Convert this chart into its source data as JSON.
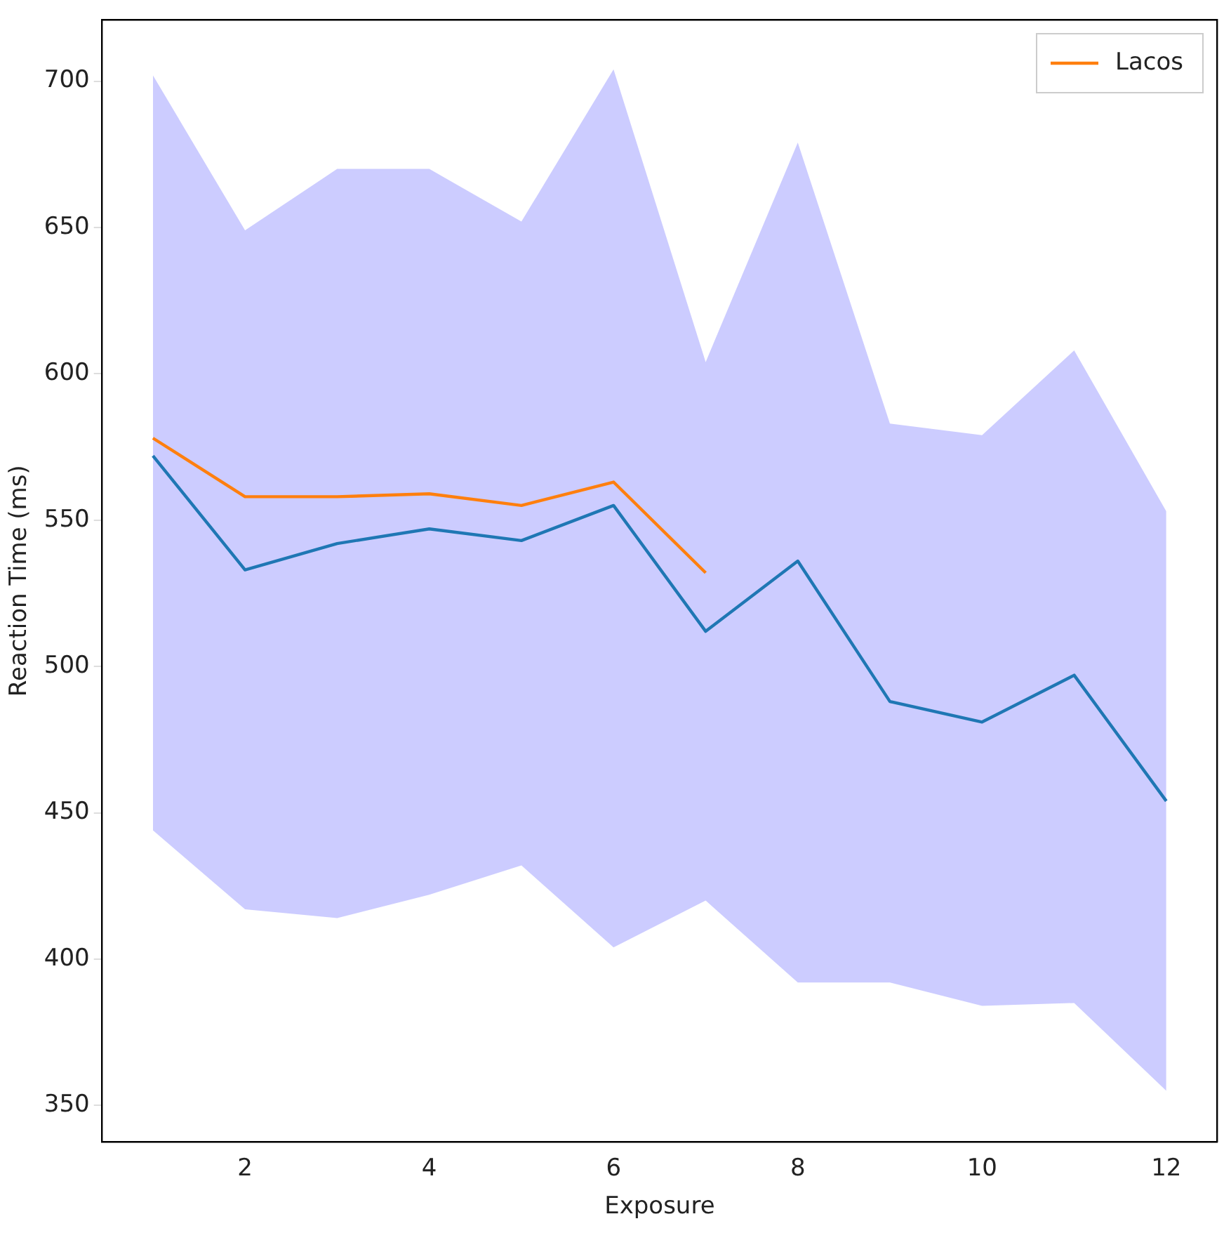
{
  "chart_data": {
    "type": "line",
    "xlabel": "Exposure",
    "ylabel": "Reaction Time (ms)",
    "x": [
      1,
      2,
      3,
      4,
      5,
      6,
      7,
      8,
      9,
      10,
      11,
      12
    ],
    "series": [
      {
        "color": "#1f77b4",
        "values": [
          572,
          533,
          542,
          547,
          543,
          555,
          512,
          536,
          488,
          481,
          497,
          454
        ],
        "lower": [
          444,
          417,
          414,
          422,
          432,
          404,
          420,
          392,
          392,
          384,
          385,
          355
        ],
        "upper": [
          702,
          649,
          670,
          670,
          652,
          704,
          604,
          679,
          583,
          579,
          608,
          553
        ]
      },
      {
        "name": "Lacos",
        "color": "#ff7f0e",
        "x": [
          1,
          2,
          3,
          4,
          5,
          6,
          7
        ],
        "values": [
          578,
          558,
          558,
          559,
          555,
          563,
          532
        ]
      }
    ],
    "xlim": [
      0.45,
      12.55
    ],
    "ylim": [
      337.5,
      721
    ],
    "xticks": [
      2,
      4,
      6,
      8,
      10,
      12
    ],
    "yticks": [
      350,
      400,
      450,
      500,
      550,
      600,
      650,
      700
    ],
    "grid": false,
    "legend": "top right",
    "line_style": "solid",
    "marker": "none"
  }
}
